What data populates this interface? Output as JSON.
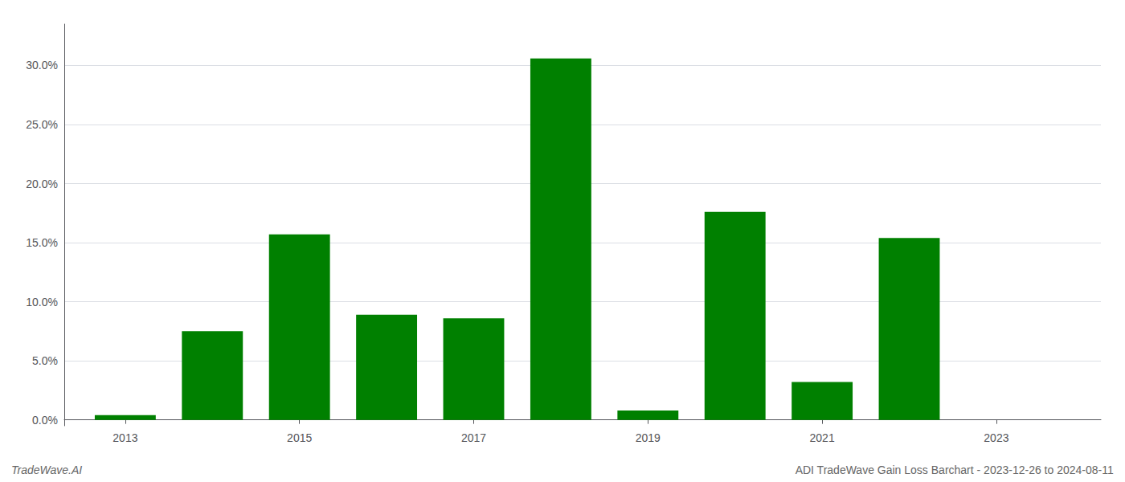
{
  "chart_data": {
    "type": "bar",
    "annotations": [
      "TradeWave.AI",
      "ADI TradeWave Gain Loss Barchart - 2023-12-26 to 2024-08-11"
    ],
    "x": [
      2013,
      2014,
      2015,
      2016,
      2017,
      2018,
      2019,
      2020,
      2021,
      2022,
      2023
    ],
    "values": [
      0.004,
      0.075,
      0.157,
      0.089,
      0.086,
      0.306,
      0.008,
      0.176,
      0.032,
      0.154,
      0.0
    ],
    "color": "#008000",
    "xlim": [
      2012.3,
      2024.2
    ],
    "xticks": [
      2013,
      2015,
      2017,
      2019,
      2021,
      2023
    ],
    "ylim": [
      -0.005,
      0.335
    ],
    "yticks": [
      {
        "value": 0.0,
        "label": "0.0%"
      },
      {
        "value": 0.05,
        "label": "5.0%"
      },
      {
        "value": 0.1,
        "label": "10.0%"
      },
      {
        "value": 0.15,
        "label": "15.0%"
      },
      {
        "value": 0.2,
        "label": "20.0%"
      },
      {
        "value": 0.25,
        "label": "25.0%"
      },
      {
        "value": 0.3,
        "label": "30.0%"
      }
    ],
    "grid": true
  }
}
